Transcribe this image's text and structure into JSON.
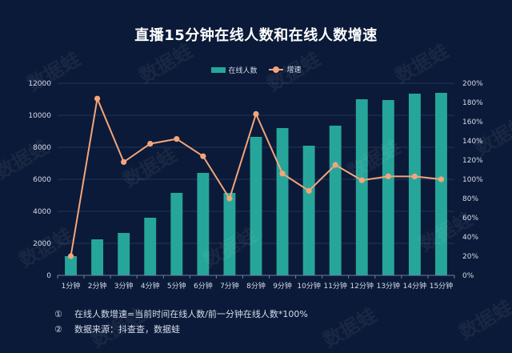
{
  "title": "直播15分钟在线人数和在线人数增速",
  "colors": {
    "bar": "#26a69a",
    "line": "#f4a57a",
    "grid": "#22345a",
    "axis_text": "#d6dceb"
  },
  "notes": [
    {
      "num": "①",
      "text": "在线人数增速=当前时间在线人数/前一分钟在线人数*100%"
    },
    {
      "num": "②",
      "text": "数据来源：抖查查，数据蛙"
    }
  ],
  "watermark": "数据蛙",
  "chart_data": {
    "type": "bar",
    "title": "直播15分钟在线人数和在线人数增速",
    "categories": [
      "1分钟",
      "2分钟",
      "3分钟",
      "4分钟",
      "5分钟",
      "6分钟",
      "7分钟",
      "8分钟",
      "9分钟",
      "10分钟",
      "11分钟",
      "12分钟",
      "13分钟",
      "14分钟",
      "15分钟"
    ],
    "series": [
      {
        "name": "在线人数",
        "type": "bar",
        "axis": "left",
        "values": [
          1200,
          2250,
          2650,
          3600,
          5150,
          6400,
          5150,
          8650,
          9200,
          8100,
          9350,
          11000,
          10950,
          11350,
          11400
        ]
      },
      {
        "name": "增速",
        "type": "line",
        "axis": "right",
        "values": [
          20,
          184,
          118,
          137,
          142,
          124,
          80,
          168,
          106,
          88,
          115,
          99,
          103,
          103,
          100
        ]
      }
    ],
    "y_left": {
      "min": 0,
      "max": 12000,
      "step": 2000,
      "ticks": [
        "0",
        "2000",
        "4000",
        "6000",
        "8000",
        "10000",
        "12000"
      ]
    },
    "y_right": {
      "min": 0,
      "max": 200,
      "step": 20,
      "ticks": [
        "0%",
        "20%",
        "40%",
        "60%",
        "80%",
        "100%",
        "120%",
        "140%",
        "160%",
        "180%",
        "200%"
      ]
    },
    "legend_position": "top-center",
    "grid": true
  }
}
